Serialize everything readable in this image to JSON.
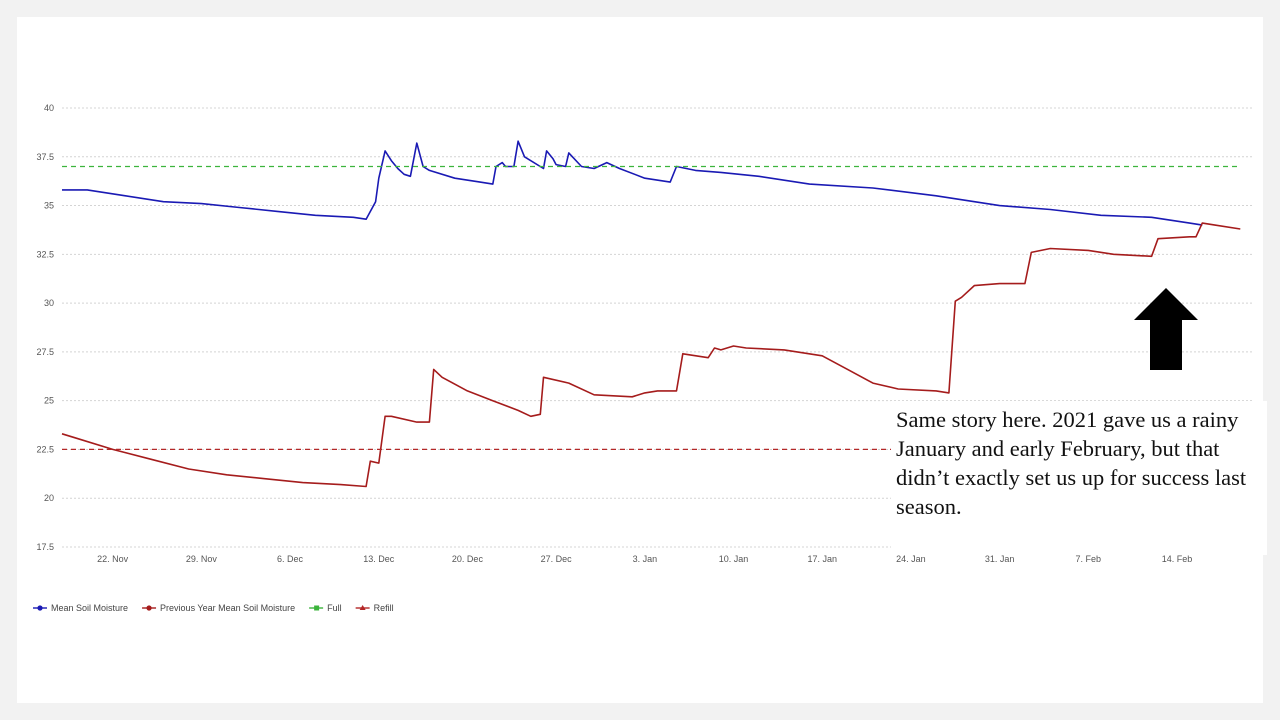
{
  "chart_data": {
    "type": "line",
    "title": "",
    "xlabel": "",
    "ylabel": "",
    "ylim": [
      17.5,
      40
    ],
    "yticks": [
      "17.5",
      "20",
      "22.5",
      "25",
      "27.5",
      "30",
      "32.5",
      "35",
      "37.5",
      "40"
    ],
    "xlim": [
      "2020-11-18",
      "2021-02-20"
    ],
    "xticks": [
      {
        "date": "2020-11-22",
        "label": "22. Nov"
      },
      {
        "date": "2020-11-29",
        "label": "29. Nov"
      },
      {
        "date": "2020-12-06",
        "label": "6. Dec"
      },
      {
        "date": "2020-12-13",
        "label": "13. Dec"
      },
      {
        "date": "2020-12-20",
        "label": "20. Dec"
      },
      {
        "date": "2020-12-27",
        "label": "27. Dec"
      },
      {
        "date": "2021-01-03",
        "label": "3. Jan"
      },
      {
        "date": "2021-01-10",
        "label": "10. Jan"
      },
      {
        "date": "2021-01-17",
        "label": "17. Jan"
      },
      {
        "date": "2021-01-24",
        "label": "24. Jan"
      },
      {
        "date": "2021-01-31",
        "label": "31. Jan"
      },
      {
        "date": "2021-02-07",
        "label": "7. Feb"
      },
      {
        "date": "2021-02-14",
        "label": "14. Feb"
      }
    ],
    "grid": true,
    "legend_position": "bottom-left",
    "series": [
      {
        "name": "Mean Soil Moisture",
        "color": "#1a1ab4",
        "points": [
          [
            "2020-11-18",
            35.8
          ],
          [
            "2020-11-20",
            35.8
          ],
          [
            "2020-11-23",
            35.5
          ],
          [
            "2020-11-26",
            35.2
          ],
          [
            "2020-11-29",
            35.1
          ],
          [
            "2020-12-02",
            34.9
          ],
          [
            "2020-12-05",
            34.7
          ],
          [
            "2020-12-08",
            34.5
          ],
          [
            "2020-12-11",
            34.4
          ],
          [
            "2020-12-12",
            34.3
          ],
          [
            "2020-12-12T18",
            35.2
          ],
          [
            "2020-12-13",
            36.4
          ],
          [
            "2020-12-13T12",
            37.8
          ],
          [
            "2020-12-14",
            37.3
          ],
          [
            "2020-12-14T12",
            36.9
          ],
          [
            "2020-12-15",
            36.6
          ],
          [
            "2020-12-15T12",
            36.5
          ],
          [
            "2020-12-16",
            38.2
          ],
          [
            "2020-12-16T12",
            37.0
          ],
          [
            "2020-12-17",
            36.8
          ],
          [
            "2020-12-19",
            36.4
          ],
          [
            "2020-12-21",
            36.2
          ],
          [
            "2020-12-22",
            36.1
          ],
          [
            "2020-12-22T06",
            37.0
          ],
          [
            "2020-12-22T18",
            37.2
          ],
          [
            "2020-12-23",
            37.0
          ],
          [
            "2020-12-23T16",
            37.0
          ],
          [
            "2020-12-24",
            38.3
          ],
          [
            "2020-12-24T12",
            37.5
          ],
          [
            "2020-12-26",
            36.9
          ],
          [
            "2020-12-26T06",
            37.8
          ],
          [
            "2020-12-26T18",
            37.4
          ],
          [
            "2020-12-27",
            37.1
          ],
          [
            "2020-12-27T18",
            37.0
          ],
          [
            "2020-12-28",
            37.7
          ],
          [
            "2020-12-29",
            37.0
          ],
          [
            "2020-12-30",
            36.9
          ],
          [
            "2020-12-31",
            37.2
          ],
          [
            "2021-01-01",
            36.9
          ],
          [
            "2021-01-03",
            36.4
          ],
          [
            "2021-01-05",
            36.2
          ],
          [
            "2021-01-05T12",
            37.0
          ],
          [
            "2021-01-07",
            36.8
          ],
          [
            "2021-01-09",
            36.7
          ],
          [
            "2021-01-12",
            36.5
          ],
          [
            "2021-01-16",
            36.1
          ],
          [
            "2021-01-21",
            35.9
          ],
          [
            "2021-01-26",
            35.5
          ],
          [
            "2021-01-31",
            35.0
          ],
          [
            "2021-02-04",
            34.8
          ],
          [
            "2021-02-08",
            34.5
          ],
          [
            "2021-02-12",
            34.4
          ],
          [
            "2021-02-15",
            34.1
          ],
          [
            "2021-02-16",
            34.0
          ]
        ]
      },
      {
        "name": "Previous Year Mean Soil Moisture",
        "color": "#a51c1c",
        "points": [
          [
            "2020-11-18",
            23.3
          ],
          [
            "2020-11-19",
            23.1
          ],
          [
            "2020-11-22",
            22.5
          ],
          [
            "2020-11-25",
            22.0
          ],
          [
            "2020-11-28",
            21.5
          ],
          [
            "2020-12-01",
            21.2
          ],
          [
            "2020-12-04",
            21.0
          ],
          [
            "2020-12-07",
            20.8
          ],
          [
            "2020-12-10",
            20.7
          ],
          [
            "2020-12-12",
            20.6
          ],
          [
            "2020-12-12T08",
            21.9
          ],
          [
            "2020-12-13",
            21.8
          ],
          [
            "2020-12-13T12",
            24.2
          ],
          [
            "2020-12-14",
            24.2
          ],
          [
            "2020-12-16",
            23.9
          ],
          [
            "2020-12-17",
            23.9
          ],
          [
            "2020-12-17T08",
            26.6
          ],
          [
            "2020-12-18",
            26.2
          ],
          [
            "2020-12-20",
            25.5
          ],
          [
            "2020-12-22",
            25.0
          ],
          [
            "2020-12-24",
            24.5
          ],
          [
            "2020-12-25",
            24.2
          ],
          [
            "2020-12-25T18",
            24.3
          ],
          [
            "2020-12-26",
            26.2
          ],
          [
            "2020-12-28",
            25.9
          ],
          [
            "2020-12-30",
            25.3
          ],
          [
            "2021-01-02",
            25.2
          ],
          [
            "2021-01-03",
            25.4
          ],
          [
            "2021-01-04",
            25.5
          ],
          [
            "2021-01-05T12",
            25.5
          ],
          [
            "2021-01-06",
            27.4
          ],
          [
            "2021-01-08",
            27.2
          ],
          [
            "2021-01-08T12",
            27.7
          ],
          [
            "2021-01-09",
            27.6
          ],
          [
            "2021-01-10",
            27.8
          ],
          [
            "2021-01-11",
            27.7
          ],
          [
            "2021-01-14",
            27.6
          ],
          [
            "2021-01-17",
            27.3
          ],
          [
            "2021-01-19",
            26.6
          ],
          [
            "2021-01-21",
            25.9
          ],
          [
            "2021-01-23",
            25.6
          ],
          [
            "2021-01-26",
            25.5
          ],
          [
            "2021-01-27",
            25.4
          ],
          [
            "2021-01-27T12",
            30.1
          ],
          [
            "2021-01-28",
            30.3
          ],
          [
            "2021-01-29",
            30.9
          ],
          [
            "2021-01-31",
            31.0
          ],
          [
            "2021-02-02",
            31.0
          ],
          [
            "2021-02-02T12",
            32.6
          ],
          [
            "2021-02-04",
            32.8
          ],
          [
            "2021-02-07",
            32.7
          ],
          [
            "2021-02-09",
            32.5
          ],
          [
            "2021-02-12",
            32.4
          ],
          [
            "2021-02-12T12",
            33.3
          ],
          [
            "2021-02-15",
            33.4
          ],
          [
            "2021-02-15T12",
            33.4
          ],
          [
            "2021-02-16",
            34.1
          ],
          [
            "2021-02-17",
            34.0
          ],
          [
            "2021-02-19",
            33.8
          ]
        ]
      },
      {
        "name": "Full",
        "color": "#3cb43c",
        "dashed": true,
        "points": [
          [
            "2020-11-18",
            37.0
          ],
          [
            "2021-02-19",
            37.0
          ]
        ]
      },
      {
        "name": "Refill",
        "color": "#b42828",
        "dashed": true,
        "points": [
          [
            "2020-11-18",
            22.5
          ],
          [
            "2021-02-19",
            22.5
          ]
        ]
      }
    ]
  },
  "caption": {
    "text": "Same story here. 2021 gave us a rainy January and early February, but that didn’t exactly set us up for success last season."
  },
  "arrow": {
    "icon": "up-arrow-icon",
    "color": "#000000"
  }
}
